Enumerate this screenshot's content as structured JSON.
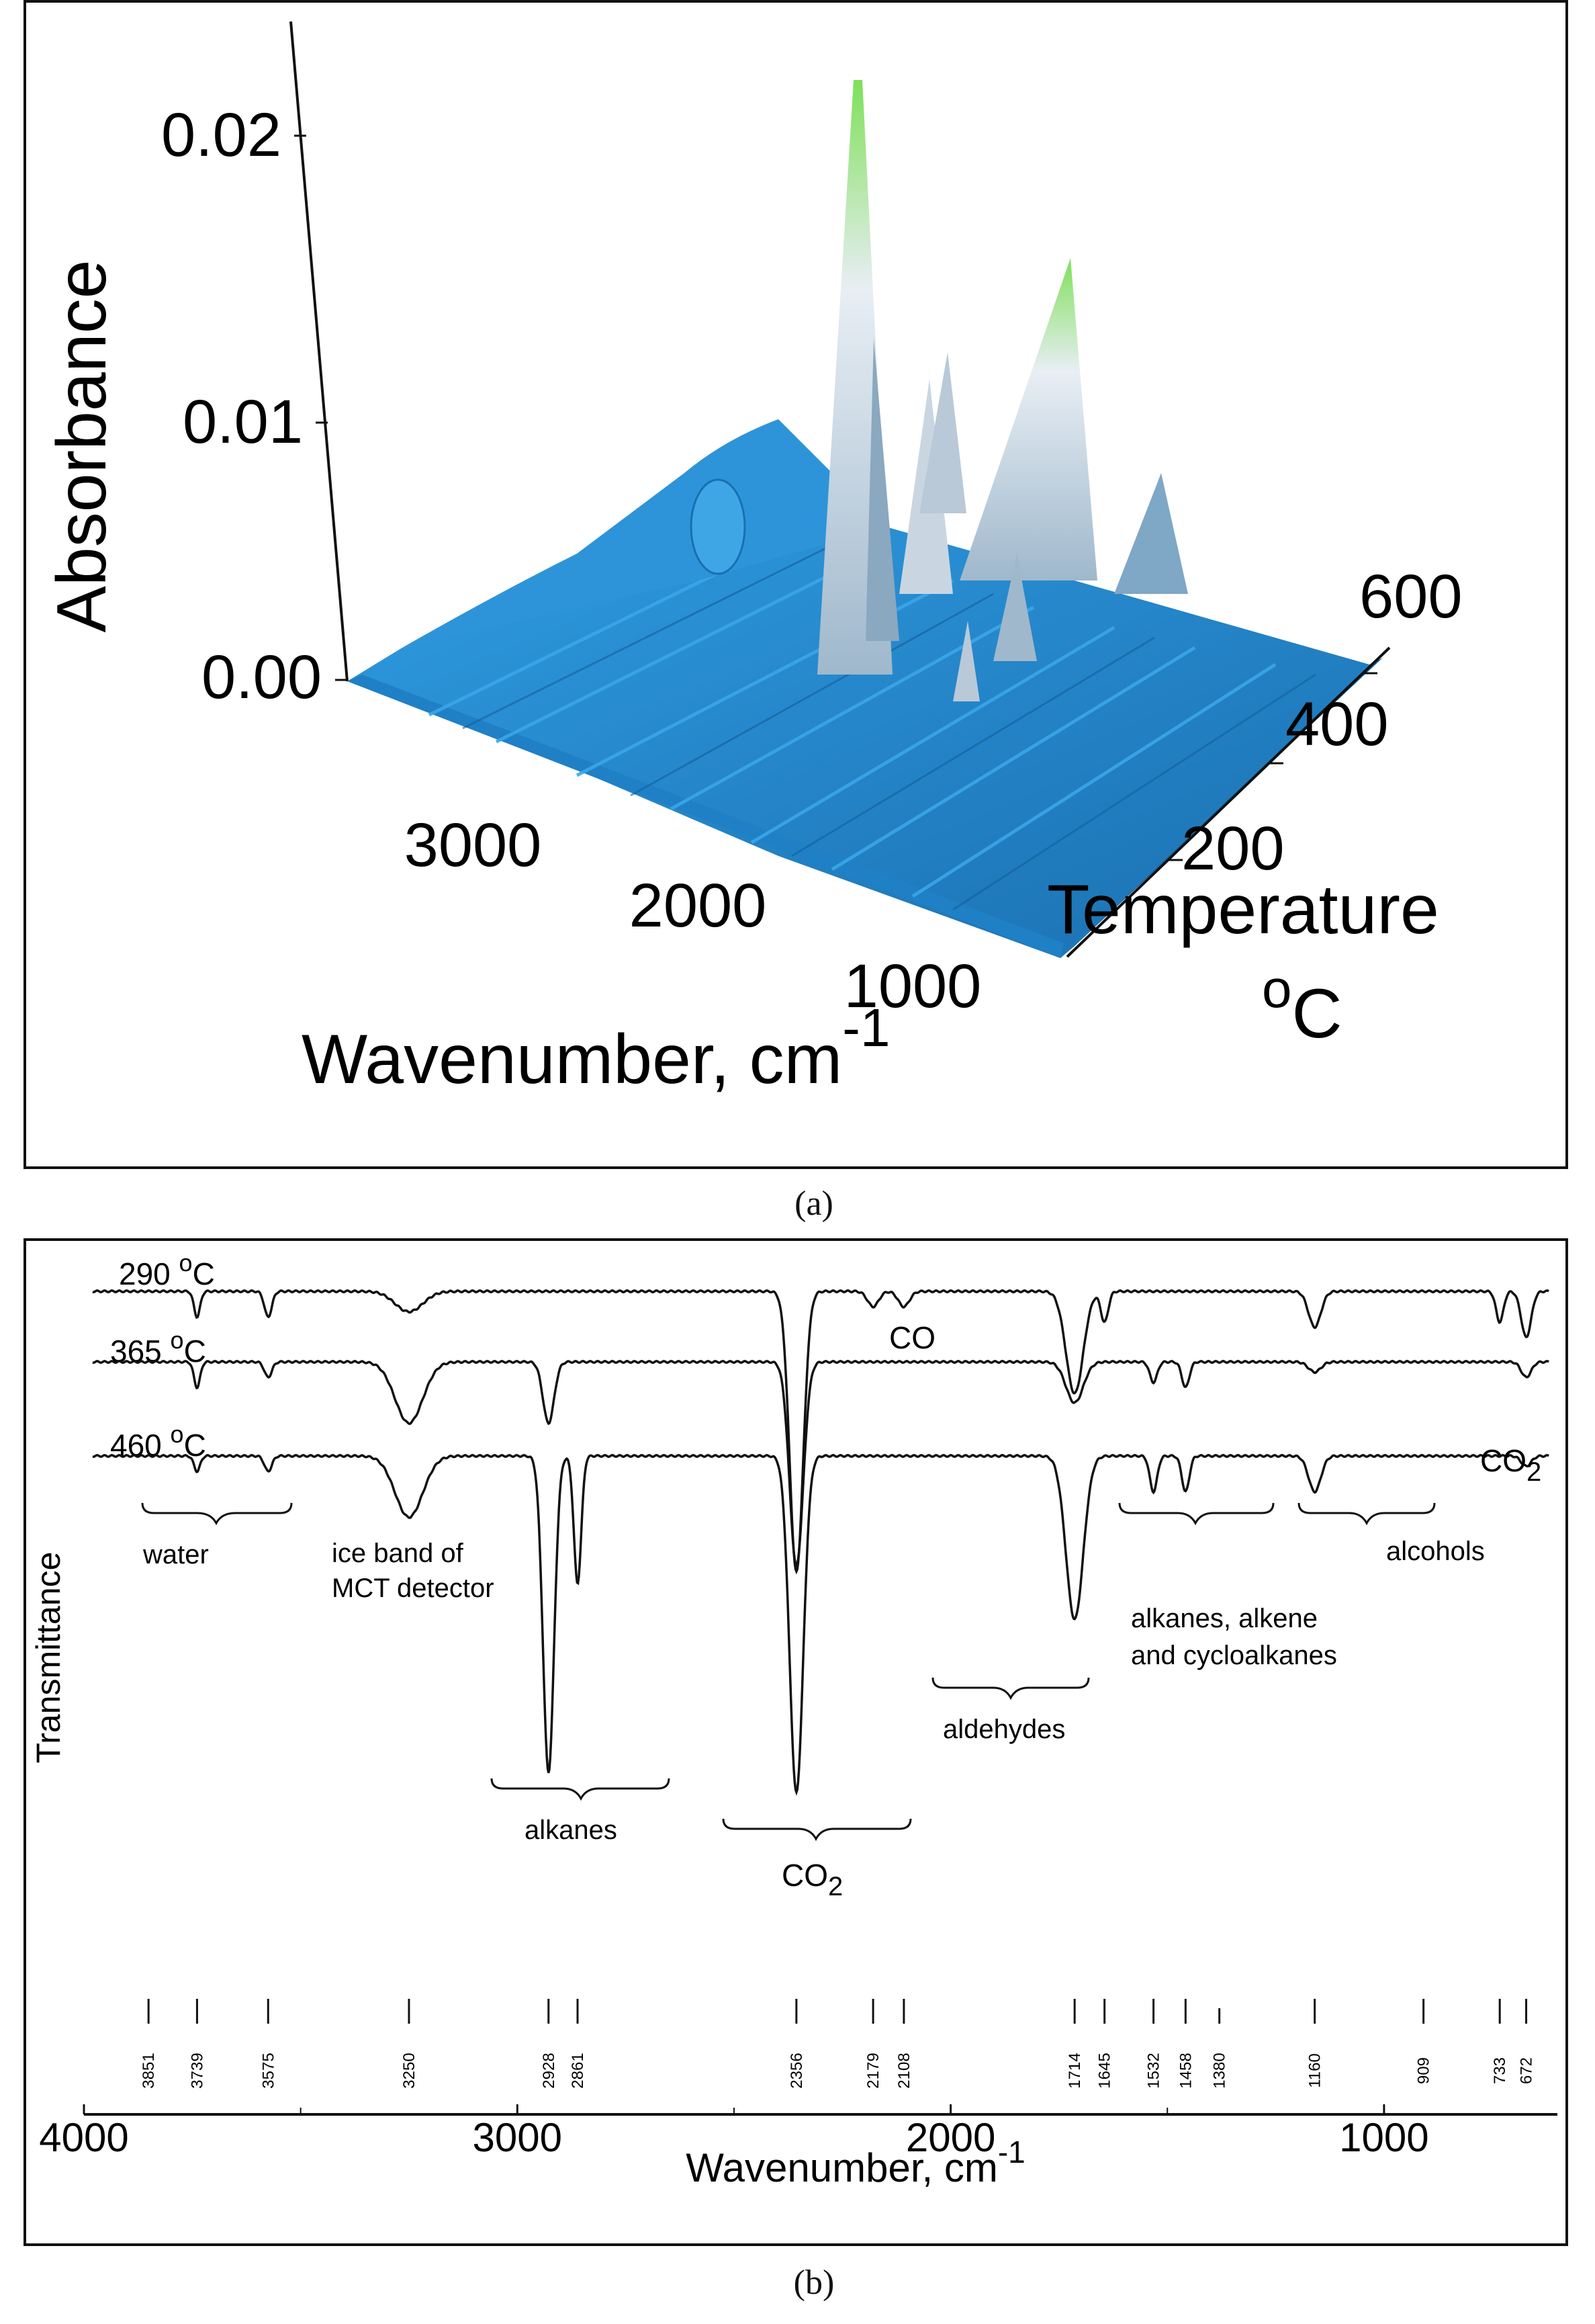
{
  "captions": {
    "a": "(a)",
    "b": "(b)"
  },
  "colors": {
    "surface": "#2a8fd6",
    "surface_dark": "#1a6fb0",
    "peak_highlight": "#7fe05a",
    "peak_white": "#e8eef4",
    "line": "#111111"
  },
  "chart_data": [
    {
      "panel": "a",
      "type": "area",
      "z_label": "Absorbance",
      "x_label": "Wavenumber, cm",
      "x_label_sup": "-1",
      "y_label": "Temperature",
      "y_label_unit_sup": "o",
      "y_label_unit": "C",
      "z_ticks": [
        "0.00",
        "0.01",
        "0.02"
      ],
      "x_ticks": [
        "3000",
        "2000",
        "1000"
      ],
      "y_ticks": [
        "200",
        "400",
        "600"
      ],
      "zlim": [
        0,
        0.025
      ],
      "xlim": [
        4000,
        600
      ],
      "ylim": [
        0,
        700
      ],
      "peaks": [
        {
          "wavenumber": 2356,
          "temperature": 300,
          "absorbance": 0.022
        },
        {
          "wavenumber": 2356,
          "temperature": 450,
          "absorbance": 0.012
        },
        {
          "wavenumber": 2100,
          "temperature": 350,
          "absorbance": 0.01
        },
        {
          "wavenumber": 1700,
          "temperature": 500,
          "absorbance": 0.016
        },
        {
          "wavenumber": 2928,
          "temperature": 420,
          "absorbance": 0.004
        }
      ]
    },
    {
      "panel": "b",
      "type": "line",
      "xlabel": "Wavenumber, cm",
      "xlabel_sup": "-1",
      "ylabel": "Transmittance",
      "xlim": [
        4000,
        600
      ],
      "x_ticks": [
        "4000",
        "3000",
        "2000",
        "1000"
      ],
      "series": [
        {
          "name": "290 oC",
          "label_main": "290 ",
          "label_sup": "o",
          "label_unit": "C",
          "dips": [
            [
              3739,
              0.05
            ],
            [
              3575,
              0.05
            ],
            [
              3250,
              0.04
            ],
            [
              2356,
              0.55
            ],
            [
              2179,
              0.03
            ],
            [
              2108,
              0.03
            ],
            [
              1714,
              0.2
            ],
            [
              1645,
              0.06
            ],
            [
              1160,
              0.07
            ],
            [
              733,
              0.06
            ],
            [
              672,
              0.09
            ]
          ]
        },
        {
          "name": "365 oC",
          "label_main": "365 ",
          "label_sup": "o",
          "label_unit": "C",
          "dips": [
            [
              3739,
              0.05
            ],
            [
              3575,
              0.03
            ],
            [
              3250,
              0.12
            ],
            [
              2928,
              0.12
            ],
            [
              2356,
              0.4
            ],
            [
              1714,
              0.08
            ],
            [
              1532,
              0.04
            ],
            [
              1458,
              0.05
            ],
            [
              1160,
              0.02
            ],
            [
              672,
              0.03
            ]
          ]
        },
        {
          "name": "460 oC",
          "label_main": "460 ",
          "label_sup": "o",
          "label_unit": "C",
          "dips": [
            [
              3739,
              0.03
            ],
            [
              3575,
              0.03
            ],
            [
              3250,
              0.12
            ],
            [
              2928,
              0.62
            ],
            [
              2861,
              0.25
            ],
            [
              2356,
              0.66
            ],
            [
              1714,
              0.32
            ],
            [
              1532,
              0.07
            ],
            [
              1458,
              0.07
            ],
            [
              1160,
              0.07
            ],
            [
              672,
              0.02
            ]
          ]
        }
      ],
      "annotations": [
        {
          "text": "water"
        },
        {
          "text": "ice band of"
        },
        {
          "text": "MCT detector"
        },
        {
          "text": "alkanes"
        },
        {
          "text": "CO",
          "sub": "2"
        },
        {
          "text": "aldehydes"
        },
        {
          "text": "alkanes, alkene"
        },
        {
          "text": "and  cycloalkanes"
        },
        {
          "text": "alcohols"
        },
        {
          "text": "CO"
        },
        {
          "text": "CO",
          "sub": "2"
        }
      ],
      "marker_wavenumbers": [
        "3851",
        "3739",
        "3575",
        "3250",
        "2928",
        "2861",
        "2356",
        "2179",
        "2108",
        "1714",
        "1645",
        "1532",
        "1458",
        "1380",
        "1160",
        "909",
        "733",
        "672"
      ]
    }
  ]
}
